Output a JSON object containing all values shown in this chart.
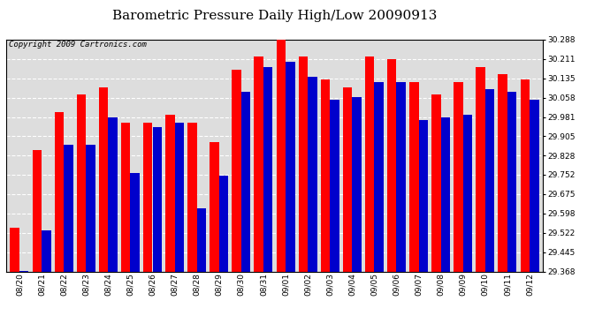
{
  "title": "Barometric Pressure Daily High/Low 20090913",
  "copyright": "Copyright 2009 Cartronics.com",
  "dates": [
    "08/20",
    "08/21",
    "08/22",
    "08/23",
    "08/24",
    "08/25",
    "08/26",
    "08/27",
    "08/28",
    "08/29",
    "08/30",
    "08/31",
    "09/01",
    "09/02",
    "09/03",
    "09/04",
    "09/05",
    "09/06",
    "09/07",
    "09/08",
    "09/09",
    "09/10",
    "09/11",
    "09/12"
  ],
  "highs": [
    29.54,
    29.85,
    30.0,
    30.07,
    30.1,
    29.96,
    29.96,
    29.99,
    29.96,
    29.88,
    30.17,
    30.22,
    30.29,
    30.22,
    30.13,
    30.1,
    30.22,
    30.21,
    30.12,
    30.07,
    30.12,
    30.18,
    30.15,
    30.13
  ],
  "lows": [
    29.37,
    29.53,
    29.87,
    29.87,
    29.98,
    29.76,
    29.94,
    29.96,
    29.62,
    29.75,
    30.08,
    30.18,
    30.2,
    30.14,
    30.05,
    30.06,
    30.12,
    30.12,
    29.97,
    29.98,
    29.99,
    30.09,
    30.08,
    30.05
  ],
  "ymin": 29.368,
  "ymax": 30.288,
  "yticks": [
    29.368,
    29.445,
    29.522,
    29.598,
    29.675,
    29.752,
    29.828,
    29.905,
    29.981,
    30.058,
    30.135,
    30.211,
    30.288
  ],
  "high_color": "#ff0000",
  "low_color": "#0000cc",
  "bg_color": "#ffffff",
  "plot_bg_color": "#dddddd",
  "grid_color": "#ffffff",
  "bar_width": 0.42,
  "title_fontsize": 11,
  "copyright_fontsize": 6.5,
  "tick_fontsize": 6.5
}
